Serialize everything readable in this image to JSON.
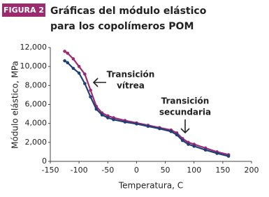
{
  "chart_data": {
    "type": "line",
    "figure_label": "FIGURA 2",
    "title": [
      "Gráficas del módulo elástico",
      "para los copolímeros POM"
    ],
    "xlabel": "Temperatura, C",
    "ylabel": "Módulo elástico, MPa",
    "x": [
      -125,
      -120,
      -110,
      -100,
      -90,
      -80,
      -70,
      -60,
      -50,
      -40,
      -20,
      0,
      20,
      40,
      60,
      70,
      80,
      90,
      100,
      120,
      140,
      160
    ],
    "series": [
      {
        "color": "#9b2a6e",
        "values": [
          11600,
          11400,
          10800,
          10000,
          9200,
          7500,
          5800,
          5100,
          4800,
          4600,
          4300,
          4050,
          3800,
          3550,
          3300,
          3000,
          2400,
          2000,
          1800,
          1400,
          1000,
          700
        ]
      },
      {
        "color": "#1f3f7a",
        "values": [
          10600,
          10400,
          9800,
          9300,
          8200,
          6800,
          5500,
          4900,
          4600,
          4400,
          4150,
          3950,
          3700,
          3450,
          3150,
          2800,
          2200,
          1800,
          1600,
          1200,
          850,
          550
        ]
      }
    ],
    "xlim": [
      -150,
      200
    ],
    "xticks": [
      -150,
      -100,
      -50,
      0,
      50,
      100,
      150,
      200
    ],
    "ylim": [
      0,
      12000
    ],
    "yticks": [
      0,
      {
        "value": 2000,
        "label": "2,000"
      },
      {
        "value": 4000,
        "label": "4,000"
      },
      {
        "value": 6000,
        "label": "6,000"
      },
      {
        "value": 8000,
        "label": "8,000"
      },
      {
        "value": 10000,
        "label": "10,000"
      },
      {
        "value": 12000,
        "label": "12,000"
      }
    ],
    "grid": false,
    "annotations": [
      [
        "Transición",
        "vítrea"
      ],
      [
        "Transición",
        "secundaria"
      ]
    ]
  }
}
